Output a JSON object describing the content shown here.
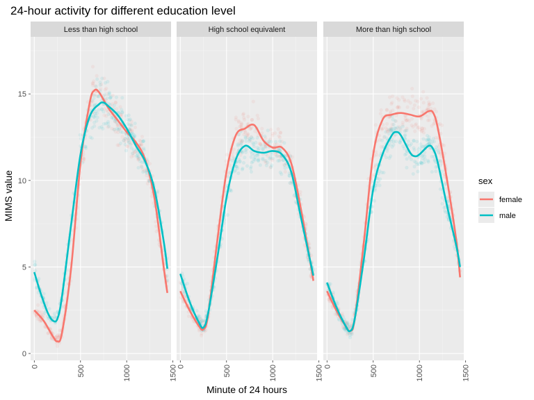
{
  "chart_data": {
    "type": "scatter",
    "title": "24-hour activity for different education level",
    "xlabel": "Minute of 24 hours",
    "ylabel": "MIMS value",
    "xlim": [
      -40,
      1480
    ],
    "ylim": [
      -0.4,
      18.3
    ],
    "x_ticks": [
      0,
      500,
      1000,
      1500
    ],
    "x_tick_labels": [
      "0",
      "500",
      "1000",
      "1500"
    ],
    "y_ticks": [
      0,
      5,
      10,
      15
    ],
    "y_tick_labels": [
      "0",
      "5",
      "10",
      "15"
    ],
    "grid": true,
    "legend": {
      "title": "sex",
      "position": "right"
    },
    "series_colors": {
      "female": "#F8766D",
      "male": "#00BFC4"
    },
    "panels": [
      {
        "label": "Less than high school",
        "series": [
          {
            "name": "female",
            "x": [
              0,
              100,
              200,
              250,
              300,
              400,
              500,
              600,
              650,
              700,
              800,
              900,
              1000,
              1100,
              1200,
              1300,
              1400,
              1440
            ],
            "y": [
              2.5,
              1.9,
              1.0,
              0.7,
              1.2,
              5.0,
              11.0,
              14.5,
              15.2,
              15.1,
              14.2,
              13.5,
              12.8,
              12.2,
              11.2,
              9.0,
              5.0,
              3.5
            ]
          },
          {
            "name": "male",
            "x": [
              0,
              50,
              100,
              150,
              200,
              250,
              300,
              400,
              500,
              600,
              700,
              750,
              800,
              900,
              1000,
              1100,
              1200,
              1300,
              1400,
              1440
            ],
            "y": [
              4.7,
              3.8,
              3.0,
              2.3,
              1.9,
              2.0,
              3.3,
              7.5,
              11.5,
              13.7,
              14.4,
              14.5,
              14.3,
              13.8,
              13.0,
              12.0,
              11.1,
              9.5,
              6.5,
              4.9
            ]
          }
        ]
      },
      {
        "label": "High school equivalent",
        "series": [
          {
            "name": "female",
            "x": [
              0,
              100,
              200,
              250,
              300,
              400,
              500,
              600,
              700,
              800,
              900,
              1000,
              1100,
              1200,
              1300,
              1400,
              1440
            ],
            "y": [
              3.6,
              2.5,
              1.6,
              1.4,
              2.2,
              6.5,
              10.5,
              12.6,
              13.0,
              13.2,
              12.3,
              11.9,
              11.9,
              11.0,
              8.5,
              5.5,
              4.2
            ]
          },
          {
            "name": "male",
            "x": [
              0,
              100,
              200,
              250,
              300,
              400,
              500,
              600,
              700,
              800,
              900,
              1000,
              1100,
              1200,
              1300,
              1400,
              1440
            ],
            "y": [
              4.6,
              3.0,
              1.8,
              1.5,
              2.3,
              5.5,
              9.0,
              11.2,
              12.0,
              11.7,
              11.6,
              11.7,
              11.5,
              10.5,
              8.0,
              5.5,
              4.5
            ]
          }
        ]
      },
      {
        "label": "More than high school",
        "series": [
          {
            "name": "female",
            "x": [
              0,
              100,
              200,
              250,
              300,
              400,
              500,
              600,
              700,
              800,
              900,
              1000,
              1100,
              1150,
              1200,
              1300,
              1400,
              1440
            ],
            "y": [
              3.6,
              2.5,
              1.6,
              1.3,
              2.0,
              6.5,
              11.5,
              13.5,
              13.8,
              13.9,
              13.8,
              13.7,
              14.0,
              13.9,
              13.0,
              10.0,
              6.5,
              4.4
            ]
          },
          {
            "name": "male",
            "x": [
              0,
              100,
              200,
              250,
              300,
              400,
              500,
              600,
              700,
              750,
              800,
              900,
              950,
              1000,
              1100,
              1150,
              1200,
              1300,
              1400,
              1440
            ],
            "y": [
              4.1,
              2.7,
              1.6,
              1.3,
              2.0,
              5.5,
              9.5,
              11.5,
              12.6,
              12.8,
              12.6,
              11.6,
              11.4,
              11.5,
              12.0,
              11.8,
              11.0,
              8.5,
              6.2,
              5.0
            ]
          }
        ]
      }
    ]
  }
}
